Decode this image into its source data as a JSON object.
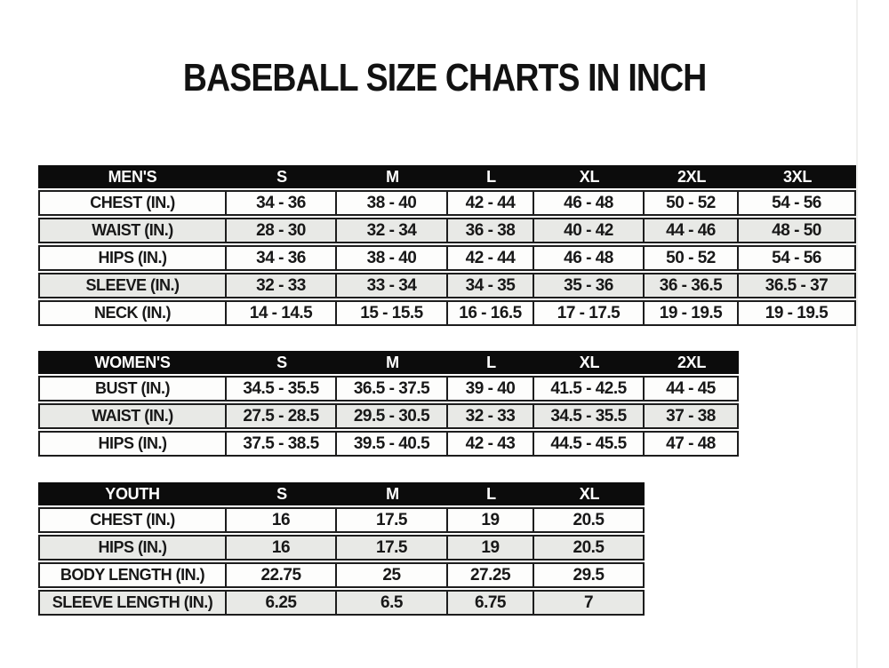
{
  "title": "BASEBALL SIZE CHARTS IN INCH",
  "colors": {
    "header_bg": "#0c0c0c",
    "header_text": "#ffffff",
    "row_plain_bg": "#fdfdfc",
    "row_stripe_bg": "#e8e9e6",
    "border": "#1d1d1d",
    "text": "#181818",
    "page_bg": "#ffffff"
  },
  "chart_data": [
    {
      "type": "table",
      "columns": [
        "MEN'S",
        "S",
        "M",
        "L",
        "XL",
        "2XL",
        "3XL"
      ],
      "rows": [
        {
          "label": "CHEST (IN.)",
          "values": [
            "34 - 36",
            "38 - 40",
            "42 - 44",
            "46 - 48",
            "50 - 52",
            "54 - 56"
          ]
        },
        {
          "label": "WAIST (IN.)",
          "values": [
            "28 - 30",
            "32 - 34",
            "36 - 38",
            "40 - 42",
            "44 - 46",
            "48 - 50"
          ]
        },
        {
          "label": "HIPS (IN.)",
          "values": [
            "34 - 36",
            "38 - 40",
            "42 - 44",
            "46 - 48",
            "50 - 52",
            "54 - 56"
          ]
        },
        {
          "label": "SLEEVE (IN.)",
          "values": [
            "32 - 33",
            "33 - 34",
            "34 - 35",
            "35 - 36",
            "36 - 36.5",
            "36.5 - 37"
          ]
        },
        {
          "label": "NECK (IN.)",
          "values": [
            "14 - 14.5",
            "15 - 15.5",
            "16 - 16.5",
            "17 - 17.5",
            "19 - 19.5",
            "19 - 19.5"
          ]
        }
      ]
    },
    {
      "type": "table",
      "columns": [
        "WOMEN'S",
        "S",
        "M",
        "L",
        "XL",
        "2XL"
      ],
      "rows": [
        {
          "label": "BUST (IN.)",
          "values": [
            "34.5 - 35.5",
            "36.5 - 37.5",
            "39 - 40",
            "41.5 - 42.5",
            "44 - 45"
          ]
        },
        {
          "label": "WAIST (IN.)",
          "values": [
            "27.5 - 28.5",
            "29.5 - 30.5",
            "32 - 33",
            "34.5 - 35.5",
            "37 - 38"
          ]
        },
        {
          "label": "HIPS (IN.)",
          "values": [
            "37.5 - 38.5",
            "39.5 - 40.5",
            "42 - 43",
            "44.5 - 45.5",
            "47 - 48"
          ]
        }
      ]
    },
    {
      "type": "table",
      "columns": [
        "YOUTH",
        "S",
        "M",
        "L",
        "XL"
      ],
      "rows": [
        {
          "label": "CHEST (IN.)",
          "values": [
            "16",
            "17.5",
            "19",
            "20.5"
          ]
        },
        {
          "label": "HIPS (IN.)",
          "values": [
            "16",
            "17.5",
            "19",
            "20.5"
          ]
        },
        {
          "label": "BODY LENGTH (IN.)",
          "values": [
            "22.75",
            "25",
            "27.25",
            "29.5"
          ]
        },
        {
          "label": "SLEEVE LENGTH (IN.)",
          "values": [
            "6.25",
            "6.5",
            "6.75",
            "7"
          ]
        }
      ]
    }
  ]
}
